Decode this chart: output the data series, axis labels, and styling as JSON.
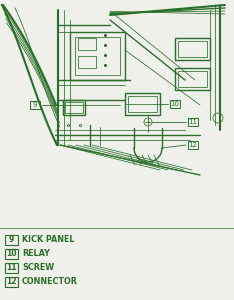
{
  "bg_color": "#f0f0eb",
  "dc": "#2a6e2a",
  "legend_items": [
    {
      "num": "9",
      "label": "KICK PANEL"
    },
    {
      "num": "10",
      "label": "RELAY"
    },
    {
      "num": "11",
      "label": "SCREW"
    },
    {
      "num": "12",
      "label": "CONNECTOR"
    }
  ],
  "lw_thick": 1.5,
  "lw_main": 1.0,
  "lw_thin": 0.55,
  "font_size_legend": 5.8,
  "font_size_num": 5.5
}
